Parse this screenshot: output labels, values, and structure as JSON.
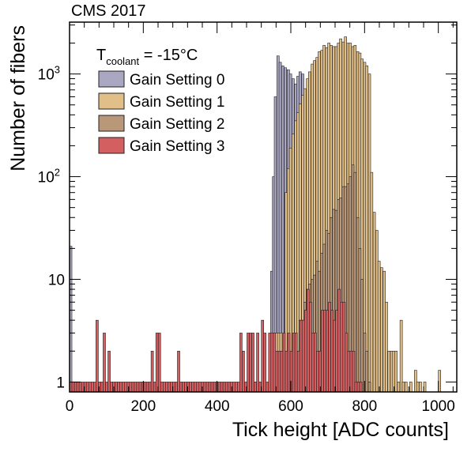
{
  "chart_data": {
    "type": "histogram",
    "title": "CMS 2017",
    "xlabel": "Tick height [ADC counts]",
    "ylabel": "Number of fibers",
    "xlim": [
      0,
      1050
    ],
    "ylim": [
      0.8,
      3200
    ],
    "yscale": "log",
    "bin_width": 6.5,
    "grid": false,
    "legend_position": "top-left",
    "legend_title": {
      "main": "T",
      "sub": "coolant",
      "rest": " = -15°C"
    },
    "x_ticks": [
      0,
      200,
      400,
      600,
      800,
      1000
    ],
    "y_ticks": [
      {
        "value": 1,
        "label": "1"
      },
      {
        "value": 10,
        "label": "10"
      },
      {
        "value": 100,
        "label": "10",
        "exp": "2"
      },
      {
        "value": 1000,
        "label": "10",
        "exp": "3"
      }
    ],
    "series": [
      {
        "name": "Gain Setting 0",
        "color": "#aaa7c3",
        "bins": [
          [
            0,
            21
          ],
          [
            6.5,
            1
          ],
          [
            500,
            1
          ],
          [
            520,
            1
          ],
          [
            540,
            2
          ],
          [
            545,
            12
          ],
          [
            550,
            100
          ],
          [
            555,
            600
          ],
          [
            562,
            1500
          ],
          [
            568,
            1300
          ],
          [
            575,
            1200
          ],
          [
            582,
            1150
          ],
          [
            590,
            1100
          ],
          [
            596,
            1000
          ],
          [
            603,
            900
          ],
          [
            610,
            800
          ],
          [
            616,
            950
          ],
          [
            622,
            1050
          ],
          [
            629,
            1000
          ]
        ]
      },
      {
        "name": "Gain Setting 1",
        "color": "#e1bf89",
        "bins": [
          [
            0,
            1
          ],
          [
            6.5,
            1
          ],
          [
            545,
            2
          ],
          [
            552,
            2
          ],
          [
            558,
            3
          ],
          [
            564,
            3
          ],
          [
            570,
            3
          ],
          [
            577,
            1
          ],
          [
            584,
            70
          ],
          [
            590,
            120
          ],
          [
            596,
            190
          ],
          [
            603,
            260
          ],
          [
            610,
            350
          ],
          [
            616,
            420
          ],
          [
            622,
            510
          ],
          [
            629,
            620
          ],
          [
            635,
            720
          ],
          [
            642,
            900
          ],
          [
            648,
            1050
          ],
          [
            655,
            1250
          ],
          [
            661,
            1350
          ],
          [
            668,
            1450
          ],
          [
            674,
            1650
          ],
          [
            681,
            1700
          ],
          [
            687,
            1900
          ],
          [
            694,
            1800
          ],
          [
            700,
            2000
          ],
          [
            706,
            1900
          ],
          [
            713,
            1850
          ],
          [
            720,
            1850
          ],
          [
            726,
            2000
          ],
          [
            732,
            2200
          ],
          [
            739,
            2050
          ],
          [
            745,
            2300
          ],
          [
            752,
            2000
          ],
          [
            758,
            2000
          ],
          [
            765,
            1850
          ],
          [
            771,
            1900
          ],
          [
            778,
            1650
          ],
          [
            784,
            1600
          ],
          [
            790,
            1400
          ],
          [
            797,
            1300
          ],
          [
            803,
            1200
          ],
          [
            810,
            1000
          ],
          [
            816,
            110
          ],
          [
            823,
            45
          ],
          [
            830,
            30
          ],
          [
            836,
            15
          ],
          [
            843,
            13
          ],
          [
            850,
            12
          ],
          [
            856,
            6
          ],
          [
            863,
            2
          ],
          [
            870,
            2
          ],
          [
            876,
            2
          ],
          [
            882,
            2
          ],
          [
            889,
            1
          ],
          [
            896,
            4
          ],
          [
            902,
            1
          ],
          [
            909,
            1
          ],
          [
            922,
            1
          ],
          [
            935,
            1.3
          ],
          [
            941,
            1
          ],
          [
            948,
            1
          ],
          [
            960,
            1
          ],
          [
            1000,
            1.3
          ]
        ]
      },
      {
        "name": "Gain Setting 2",
        "color": "#b99779",
        "bins": [
          [
            622,
            4
          ],
          [
            629,
            4
          ],
          [
            635,
            6
          ],
          [
            642,
            8
          ],
          [
            648,
            9
          ],
          [
            655,
            10
          ],
          [
            661,
            11
          ],
          [
            668,
            15
          ],
          [
            674,
            12
          ],
          [
            681,
            18
          ],
          [
            687,
            22
          ],
          [
            694,
            30
          ],
          [
            700,
            28
          ],
          [
            706,
            40
          ],
          [
            713,
            48
          ],
          [
            720,
            47
          ],
          [
            726,
            60
          ],
          [
            732,
            62
          ],
          [
            739,
            80
          ],
          [
            745,
            80
          ],
          [
            752,
            85
          ],
          [
            758,
            100
          ],
          [
            765,
            130
          ],
          [
            771,
            110
          ],
          [
            778,
            40
          ],
          [
            784,
            20
          ],
          [
            790,
            10
          ],
          [
            797,
            3
          ],
          [
            803,
            2
          ],
          [
            810,
            1
          ]
        ]
      },
      {
        "name": "Gain Setting 3",
        "color": "#d35f61",
        "bins": [
          [
            0,
            1
          ],
          [
            6.5,
            1
          ],
          [
            13,
            1
          ],
          [
            19.5,
            1
          ],
          [
            26,
            1
          ],
          [
            32.5,
            1
          ],
          [
            39,
            1
          ],
          [
            45.5,
            1
          ],
          [
            52,
            1
          ],
          [
            58.5,
            1
          ],
          [
            65,
            1
          ],
          [
            71.5,
            4
          ],
          [
            78,
            1
          ],
          [
            84.5,
            1
          ],
          [
            91,
            3
          ],
          [
            97.5,
            1
          ],
          [
            104,
            2
          ],
          [
            110.5,
            1
          ],
          [
            117,
            1
          ],
          [
            123.5,
            1
          ],
          [
            130,
            1
          ],
          [
            136.5,
            1
          ],
          [
            143,
            1
          ],
          [
            149.5,
            1
          ],
          [
            156,
            1
          ],
          [
            162.5,
            1
          ],
          [
            169,
            1
          ],
          [
            175.5,
            1
          ],
          [
            182,
            1
          ],
          [
            188.5,
            1
          ],
          [
            195,
            1
          ],
          [
            201.5,
            1
          ],
          [
            208,
            1
          ],
          [
            214.5,
            1
          ],
          [
            221,
            2
          ],
          [
            227.5,
            1
          ],
          [
            234,
            3
          ],
          [
            240.5,
            3
          ],
          [
            247,
            1
          ],
          [
            253.5,
            1
          ],
          [
            260,
            1
          ],
          [
            266.5,
            1
          ],
          [
            273,
            1
          ],
          [
            279.5,
            1
          ],
          [
            286,
            1
          ],
          [
            292.5,
            2
          ],
          [
            299,
            1
          ],
          [
            305.5,
            1
          ],
          [
            312,
            1
          ],
          [
            318.5,
            1
          ],
          [
            325,
            1
          ],
          [
            331.5,
            1
          ],
          [
            338,
            1
          ],
          [
            344.5,
            1
          ],
          [
            351,
            1
          ],
          [
            357.5,
            1
          ],
          [
            364,
            1
          ],
          [
            370.5,
            1
          ],
          [
            377,
            1
          ],
          [
            383.5,
            1
          ],
          [
            390,
            1
          ],
          [
            396.5,
            1
          ],
          [
            403,
            1
          ],
          [
            409.5,
            1
          ],
          [
            416,
            1
          ],
          [
            422.5,
            1
          ],
          [
            429,
            1
          ],
          [
            435.5,
            1
          ],
          [
            442,
            1
          ],
          [
            448.5,
            1
          ],
          [
            455,
            1
          ],
          [
            461.5,
            3
          ],
          [
            468,
            2
          ],
          [
            474.5,
            1
          ],
          [
            481,
            3
          ],
          [
            487.5,
            3
          ],
          [
            494,
            3
          ],
          [
            500.5,
            1
          ],
          [
            507,
            3
          ],
          [
            513.5,
            1
          ],
          [
            520,
            4
          ],
          [
            526.5,
            3
          ],
          [
            533,
            1
          ],
          [
            539.5,
            3
          ],
          [
            546,
            3
          ],
          [
            552.5,
            3
          ],
          [
            559,
            2
          ],
          [
            565.5,
            2
          ],
          [
            572,
            2
          ],
          [
            578.5,
            3
          ],
          [
            585,
            2
          ],
          [
            591.5,
            3
          ],
          [
            598,
            2
          ],
          [
            604.5,
            3
          ],
          [
            611,
            3
          ],
          [
            617.5,
            2
          ],
          [
            624,
            4
          ],
          [
            630.5,
            4
          ],
          [
            637,
            5
          ],
          [
            643.5,
            8
          ],
          [
            650,
            6
          ],
          [
            656.5,
            3
          ],
          [
            663,
            3
          ],
          [
            669.5,
            2
          ],
          [
            676,
            2
          ],
          [
            682.5,
            5
          ],
          [
            689,
            5
          ],
          [
            695.5,
            5
          ],
          [
            702,
            6
          ],
          [
            708.5,
            5
          ],
          [
            715,
            4
          ],
          [
            721.5,
            5
          ],
          [
            728,
            8
          ],
          [
            734.5,
            6
          ],
          [
            741,
            6
          ],
          [
            747.5,
            3
          ],
          [
            754,
            2
          ],
          [
            760.5,
            2
          ],
          [
            767,
            2
          ],
          [
            773.5,
            1
          ],
          [
            780,
            1
          ],
          [
            786.5,
            1
          ]
        ]
      }
    ]
  }
}
